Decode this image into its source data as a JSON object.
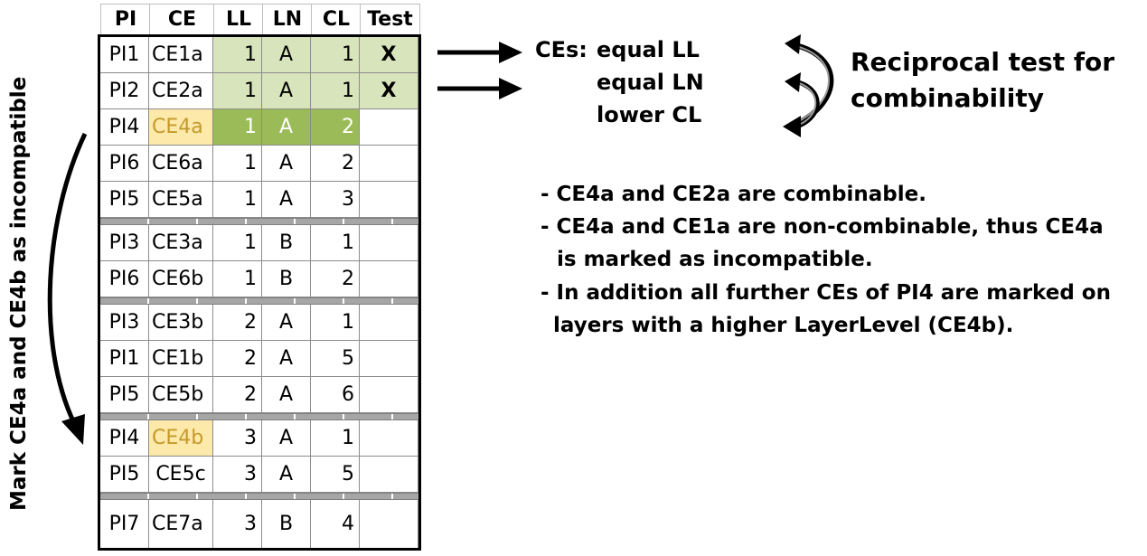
{
  "table": {
    "headers": [
      "PI",
      "CE",
      "LL",
      "LN",
      "CL",
      "Test"
    ],
    "rows": [
      {
        "pi": "PI1",
        "ce": "CE1a",
        "ll": "1",
        "ln": "A",
        "cl": "1",
        "test": "X"
      },
      {
        "pi": "PI2",
        "ce": "CE2a",
        "ll": "1",
        "ln": "A",
        "cl": "1",
        "test": "X"
      },
      {
        "pi": "PI4",
        "ce": "CE4a",
        "ll": "1",
        "ln": "A",
        "cl": "2",
        "test": ""
      },
      {
        "pi": "PI6",
        "ce": "CE6a",
        "ll": "1",
        "ln": "A",
        "cl": "2",
        "test": ""
      },
      {
        "pi": "PI5",
        "ce": "CE5a",
        "ll": "1",
        "ln": "A",
        "cl": "3",
        "test": ""
      },
      {
        "pi": "PI3",
        "ce": "CE3a",
        "ll": "1",
        "ln": "B",
        "cl": "1",
        "test": ""
      },
      {
        "pi": "PI6",
        "ce": "CE6b",
        "ll": "1",
        "ln": "B",
        "cl": "2",
        "test": ""
      },
      {
        "pi": "PI3",
        "ce": "CE3b",
        "ll": "2",
        "ln": "A",
        "cl": "1",
        "test": ""
      },
      {
        "pi": "PI1",
        "ce": "CE1b",
        "ll": "2",
        "ln": "A",
        "cl": "5",
        "test": ""
      },
      {
        "pi": "PI5",
        "ce": "CE5b",
        "ll": "2",
        "ln": "A",
        "cl": "6",
        "test": ""
      },
      {
        "pi": "PI4",
        "ce": "CE4b",
        "ll": "3",
        "ln": "A",
        "cl": "1",
        "test": ""
      },
      {
        "pi": "PI5",
        "ce": "CE5c",
        "ll": "3",
        "ln": "A",
        "cl": "5",
        "test": ""
      },
      {
        "pi": "PI7",
        "ce": "CE7a",
        "ll": "3",
        "ln": "B",
        "cl": "4",
        "test": ""
      }
    ]
  },
  "ces_criteria": {
    "prefix": "CEs:",
    "lines": [
      "equal LL",
      "equal LN",
      "lower CL"
    ]
  },
  "reciprocal": [
    "Reciprocal test for",
    "combinability"
  ],
  "notes": [
    "- CE4a and CE2a are combinable.",
    "- CE4a and CE1a are non-combinable, thus CE4a",
    "is marked as incompatible.",
    "- In addition all further CEs of PI4 are marked on",
    "layers with a higher LayerLevel (CE4b)."
  ],
  "vertical_label": "Mark CE4a and CE4b as incompatible",
  "colors": {
    "test_highlight": "#d8e4bc",
    "current_row": "#9bbb59",
    "incompatible": "#fde9a9"
  }
}
